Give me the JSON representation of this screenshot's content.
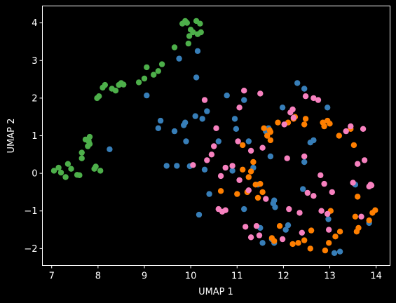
{
  "chart_data": {
    "type": "scatter",
    "title": "",
    "xlabel": "UMAP 1",
    "ylabel": "UMAP 2",
    "xlim": [
      6.8,
      14.3
    ],
    "ylim": [
      -2.45,
      4.45
    ],
    "xticks": [
      7,
      8,
      9,
      10,
      11,
      12,
      13,
      14
    ],
    "yticks": [
      -2,
      -1,
      0,
      1,
      2,
      3,
      4
    ],
    "grid": false,
    "legend": "none",
    "background": "#000000",
    "foreground": "#ffffff",
    "series": [
      {
        "color": "#4daf4a",
        "points": [
          [
            7.05,
            0.07
          ],
          [
            7.15,
            0.15
          ],
          [
            7.2,
            0.02
          ],
          [
            7.3,
            -0.1
          ],
          [
            7.35,
            0.25
          ],
          [
            7.42,
            0.12
          ],
          [
            7.55,
            -0.04
          ],
          [
            7.6,
            -0.05
          ],
          [
            7.65,
            0.4
          ],
          [
            7.65,
            0.55
          ],
          [
            7.73,
            0.9
          ],
          [
            7.78,
            0.72
          ],
          [
            7.8,
            0.85
          ],
          [
            7.82,
            0.78
          ],
          [
            7.82,
            0.97
          ],
          [
            7.92,
            0.12
          ],
          [
            7.95,
            0.18
          ],
          [
            7.98,
            2.0
          ],
          [
            8.02,
            2.05
          ],
          [
            8.05,
            0.07
          ],
          [
            8.1,
            2.28
          ],
          [
            8.15,
            2.35
          ],
          [
            8.3,
            2.25
          ],
          [
            8.38,
            2.2
          ],
          [
            8.45,
            2.35
          ],
          [
            8.5,
            2.4
          ],
          [
            8.55,
            2.36
          ],
          [
            8.88,
            2.42
          ],
          [
            9.0,
            2.52
          ],
          [
            9.05,
            2.82
          ],
          [
            9.2,
            2.62
          ],
          [
            9.3,
            2.72
          ],
          [
            9.38,
            2.9
          ],
          [
            9.65,
            3.35
          ],
          [
            9.82,
            3.98
          ],
          [
            9.88,
            4.05
          ],
          [
            9.92,
            4.0
          ],
          [
            9.95,
            3.45
          ],
          [
            9.97,
            3.65
          ],
          [
            10.0,
            3.82
          ],
          [
            10.05,
            3.75
          ],
          [
            10.12,
            4.05
          ],
          [
            10.15,
            3.7
          ],
          [
            10.2,
            3.98
          ],
          [
            10.22,
            3.75
          ]
        ]
      },
      {
        "color": "#377eb8",
        "points": [
          [
            8.25,
            0.64
          ],
          [
            9.05,
            2.07
          ],
          [
            9.3,
            1.2
          ],
          [
            9.35,
            1.4
          ],
          [
            9.48,
            0.2
          ],
          [
            9.65,
            1.12
          ],
          [
            9.7,
            0.2
          ],
          [
            9.75,
            3.05
          ],
          [
            9.85,
            1.28
          ],
          [
            9.88,
            1.35
          ],
          [
            9.9,
            0.85
          ],
          [
            9.98,
            0.19
          ],
          [
            10.1,
            1.52
          ],
          [
            10.12,
            2.55
          ],
          [
            10.15,
            3.25
          ],
          [
            10.18,
            -1.1
          ],
          [
            10.25,
            1.45
          ],
          [
            10.3,
            0.1
          ],
          [
            10.35,
            1.65
          ],
          [
            10.4,
            -0.55
          ],
          [
            10.6,
            0.85
          ],
          [
            10.78,
            2.07
          ],
          [
            10.9,
            0.07
          ],
          [
            10.95,
            1.45
          ],
          [
            10.98,
            1.18
          ],
          [
            11.15,
            -0.95
          ],
          [
            11.15,
            1.95
          ],
          [
            11.25,
            0.85
          ],
          [
            11.35,
            0.15
          ],
          [
            11.45,
            -0.3
          ],
          [
            11.5,
            -1.45
          ],
          [
            11.55,
            -1.85
          ],
          [
            11.62,
            1.12
          ],
          [
            11.68,
            1.2
          ],
          [
            11.72,
            0.45
          ],
          [
            11.75,
            -1.75
          ],
          [
            11.78,
            -0.8
          ],
          [
            11.8,
            -1.85
          ],
          [
            11.8,
            -0.72
          ],
          [
            11.82,
            -0.9
          ],
          [
            11.98,
            1.75
          ],
          [
            12.05,
            -1.5
          ],
          [
            12.1,
            -1.38
          ],
          [
            12.3,
            2.4
          ],
          [
            12.42,
            -0.42
          ],
          [
            12.45,
            2.25
          ],
          [
            12.45,
            0.3
          ],
          [
            12.58,
            0.82
          ],
          [
            12.65,
            0.88
          ],
          [
            12.95,
            1.75
          ],
          [
            12.97,
            -1.22
          ],
          [
            13.1,
            -2.12
          ],
          [
            13.22,
            -2.08
          ],
          [
            13.55,
            -0.3
          ],
          [
            13.85,
            -1.32
          ]
        ]
      },
      {
        "color": "#ff7f00",
        "points": [
          [
            10.65,
            -0.47
          ],
          [
            11.0,
            -0.55
          ],
          [
            11.12,
            0.75
          ],
          [
            11.12,
            0.1
          ],
          [
            11.22,
            -0.5
          ],
          [
            11.25,
            -0.1
          ],
          [
            11.3,
            0.05
          ],
          [
            11.35,
            0.3
          ],
          [
            11.4,
            -0.3
          ],
          [
            11.45,
            -0.65
          ],
          [
            11.5,
            -0.28
          ],
          [
            11.55,
            -0.5
          ],
          [
            11.58,
            1.2
          ],
          [
            11.65,
            1.0
          ],
          [
            11.7,
            1.15
          ],
          [
            11.72,
            0.88
          ],
          [
            11.72,
            1.1
          ],
          [
            11.75,
            -1.72
          ],
          [
            11.8,
            -1.8
          ],
          [
            11.88,
            1.35
          ],
          [
            11.92,
            -1.4
          ],
          [
            12.1,
            1.35
          ],
          [
            12.2,
            -1.88
          ],
          [
            12.22,
            1.45
          ],
          [
            12.25,
            1.5
          ],
          [
            12.32,
            -1.85
          ],
          [
            12.45,
            -1.78
          ],
          [
            12.45,
            1.3
          ],
          [
            12.48,
            1.45
          ],
          [
            12.58,
            -2.0
          ],
          [
            12.6,
            -1.52
          ],
          [
            12.85,
            1.35
          ],
          [
            12.88,
            1.25
          ],
          [
            12.9,
            -2.05
          ],
          [
            12.95,
            1.4
          ],
          [
            12.98,
            -1.85
          ],
          [
            13.0,
            1.32
          ],
          [
            13.02,
            -1.0
          ],
          [
            13.12,
            -1.68
          ],
          [
            13.2,
            1.0
          ],
          [
            13.22,
            -1.55
          ],
          [
            13.45,
            1.18
          ],
          [
            13.52,
            0.75
          ],
          [
            13.55,
            -1.15
          ],
          [
            13.58,
            -1.55
          ],
          [
            13.6,
            -0.62
          ],
          [
            13.62,
            -1.45
          ],
          [
            13.85,
            -1.25
          ],
          [
            13.92,
            -1.05
          ],
          [
            13.98,
            -0.98
          ]
        ]
      },
      {
        "color": "#f781bf",
        "points": [
          [
            10.05,
            0.22
          ],
          [
            10.3,
            1.95
          ],
          [
            10.35,
            0.35
          ],
          [
            10.45,
            0.5
          ],
          [
            10.5,
            0.72
          ],
          [
            10.55,
            1.2
          ],
          [
            10.6,
            -0.95
          ],
          [
            10.65,
            -0.07
          ],
          [
            10.68,
            -1.02
          ],
          [
            10.75,
            -0.98
          ],
          [
            10.75,
            0.15
          ],
          [
            10.9,
            0.2
          ],
          [
            11.02,
            0.85
          ],
          [
            11.05,
            -0.18
          ],
          [
            11.05,
            1.75
          ],
          [
            11.15,
            2.2
          ],
          [
            11.18,
            -1.42
          ],
          [
            11.25,
            -0.45
          ],
          [
            11.3,
            -1.7
          ],
          [
            11.3,
            0.6
          ],
          [
            11.42,
            -1.4
          ],
          [
            11.48,
            -1.65
          ],
          [
            11.5,
            2.12
          ],
          [
            11.55,
            0.68
          ],
          [
            11.62,
            -0.68
          ],
          [
            11.98,
            -1.75
          ],
          [
            12.02,
            1.3
          ],
          [
            12.08,
            0.4
          ],
          [
            12.12,
            -0.95
          ],
          [
            12.15,
            1.62
          ],
          [
            12.2,
            1.7
          ],
          [
            12.22,
            1.48
          ],
          [
            12.35,
            -1.05
          ],
          [
            12.4,
            -1.58
          ],
          [
            12.45,
            0.45
          ],
          [
            12.48,
            2.05
          ],
          [
            12.52,
            -0.52
          ],
          [
            12.65,
            -0.6
          ],
          [
            12.65,
            2.0
          ],
          [
            12.75,
            1.95
          ],
          [
            12.8,
            -0.05
          ],
          [
            12.82,
            -1.0
          ],
          [
            12.88,
            -0.28
          ],
          [
            12.95,
            -1.08
          ],
          [
            12.98,
            -1.5
          ],
          [
            13.05,
            -0.5
          ],
          [
            13.35,
            1.12
          ],
          [
            13.45,
            1.25
          ],
          [
            13.5,
            -0.25
          ],
          [
            13.6,
            0.25
          ],
          [
            13.68,
            -1.15
          ],
          [
            13.72,
            1.18
          ],
          [
            13.75,
            0.35
          ],
          [
            13.85,
            -0.35
          ],
          [
            13.88,
            -0.3
          ],
          [
            13.9,
            -0.32
          ]
        ]
      }
    ]
  }
}
